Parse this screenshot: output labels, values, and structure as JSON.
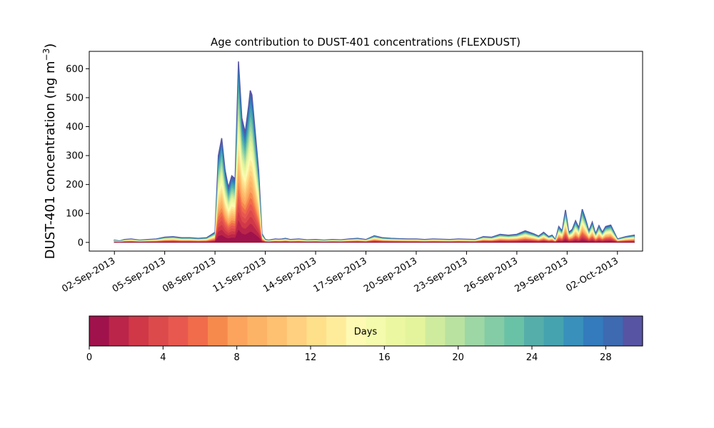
{
  "chart_data": {
    "type": "area",
    "subtype": "stacked-age-contribution",
    "title": "Age contribution to DUST-401 concentrations (FLEXDUST)",
    "ylabel_main": "DUST-401 concentration (ng m",
    "ylabel_exp": "−3",
    "ylabel_close": ")",
    "xlabel": "",
    "ylim": [
      -30,
      660
    ],
    "yticks": [
      0,
      100,
      200,
      300,
      400,
      500,
      600
    ],
    "x_start": "2013-09-01",
    "x_end": "2013-10-02",
    "xlim_days": [
      -1.5,
      31.5
    ],
    "xtick_labels": [
      "02-Sep-2013",
      "05-Sep-2013",
      "08-Sep-2013",
      "11-Sep-2013",
      "14-Sep-2013",
      "17-Sep-2013",
      "20-Sep-2013",
      "23-Sep-2013",
      "26-Sep-2013",
      "29-Sep-2013",
      "02-Oct-2013"
    ],
    "xtick_days": [
      0,
      3,
      6,
      9,
      12,
      15,
      18,
      21,
      24,
      27,
      30
    ],
    "total_concentration": {
      "x_days": [
        0.0,
        0.3,
        0.6,
        1.0,
        1.5,
        2.0,
        2.5,
        3.0,
        3.5,
        4.0,
        4.5,
        5.0,
        5.5,
        6.0,
        6.2,
        6.4,
        6.6,
        6.8,
        7.0,
        7.2,
        7.4,
        7.6,
        7.8,
        8.0,
        8.1,
        8.2,
        8.4,
        8.6,
        8.8,
        9.0,
        9.2,
        9.4,
        9.6,
        9.8,
        10.0,
        10.2,
        10.5,
        11.0,
        11.5,
        12.0,
        12.5,
        13.0,
        13.5,
        14.0,
        14.5,
        15.0,
        15.5,
        16.0,
        16.5,
        17.0,
        17.5,
        18.0,
        18.5,
        19.0,
        19.5,
        20.0,
        20.5,
        21.0,
        21.5,
        22.0,
        22.5,
        23.0,
        23.5,
        24.0,
        24.5,
        25.0,
        25.3,
        25.6,
        25.9,
        26.1,
        26.3,
        26.5,
        26.7,
        26.9,
        27.1,
        27.3,
        27.5,
        27.7,
        27.9,
        28.1,
        28.3,
        28.5,
        28.7,
        28.9,
        29.1,
        29.3,
        29.6,
        30.0,
        30.5,
        31.0
      ],
      "values": [
        8,
        5,
        10,
        12,
        8,
        10,
        12,
        18,
        20,
        16,
        16,
        14,
        16,
        35,
        300,
        360,
        250,
        190,
        230,
        220,
        625,
        430,
        380,
        470,
        525,
        510,
        380,
        250,
        30,
        10,
        8,
        10,
        12,
        11,
        12,
        14,
        10,
        12,
        9,
        10,
        8,
        10,
        9,
        12,
        14,
        10,
        23,
        16,
        14,
        13,
        12,
        12,
        10,
        12,
        11,
        10,
        12,
        11,
        10,
        20,
        18,
        28,
        25,
        28,
        40,
        30,
        22,
        35,
        20,
        25,
        10,
        55,
        40,
        112,
        35,
        45,
        75,
        50,
        115,
        80,
        40,
        70,
        30,
        58,
        35,
        55,
        60,
        12,
        20,
        25
      ]
    },
    "colorbar": {
      "label": "Days",
      "ticks": [
        0,
        4,
        8,
        12,
        16,
        20,
        24,
        28
      ],
      "range": [
        0,
        30
      ],
      "colors": [
        "#a0124b",
        "#bb2549",
        "#d03848",
        "#dd4a4b",
        "#e8584f",
        "#f16c4a",
        "#f68a4d",
        "#fca45e",
        "#fdb365",
        "#fec171",
        "#fed07f",
        "#fee08b",
        "#ffec9b",
        "#fffab3",
        "#f4fbac",
        "#ecf7a1",
        "#e4f49d",
        "#cfeb9e",
        "#b9e2a1",
        "#9dd7a5",
        "#83cca5",
        "#6ac2a6",
        "#55aeaa",
        "#45a3b0",
        "#3890bb",
        "#337bbc",
        "#3d6ab1",
        "#5754a4"
      ]
    },
    "grid": false,
    "legend": "colorbar-bottom"
  }
}
